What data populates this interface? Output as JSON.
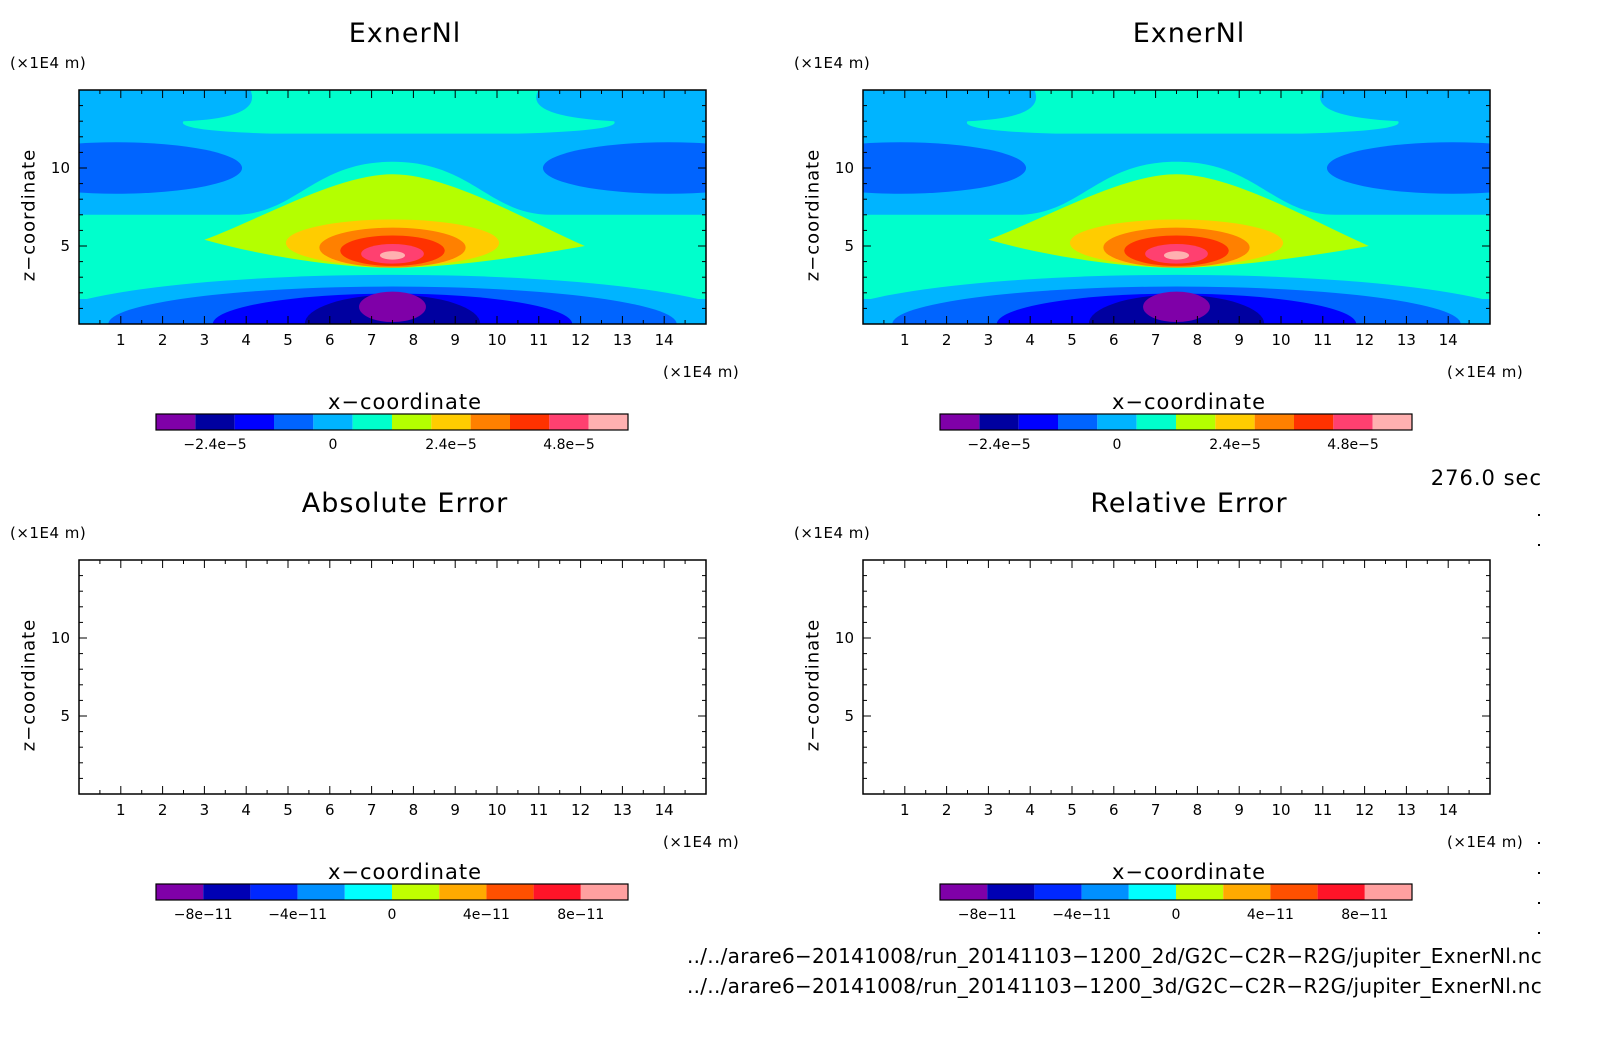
{
  "panels": [
    {
      "title": "ExnerNl",
      "y_unit": "(×1E4 m)",
      "x_unit": "(×1E4 m)",
      "xlabel": "x−coordinate",
      "ylabel": "z−coordinate",
      "colorbar_labels": [
        "−2.4e−5",
        "0",
        "2.4e−5",
        "4.8e−5"
      ]
    },
    {
      "title": "ExnerNl",
      "y_unit": "(×1E4 m)",
      "x_unit": "(×1E4 m)",
      "xlabel": "x−coordinate",
      "ylabel": "z−coordinate",
      "colorbar_labels": [
        "−2.4e−5",
        "0",
        "2.4e−5",
        "4.8e−5"
      ]
    },
    {
      "title": "Absolute Error",
      "y_unit": "(×1E4 m)",
      "x_unit": "(×1E4 m)",
      "xlabel": "x−coordinate",
      "ylabel": "z−coordinate",
      "colorbar_labels": [
        "−8e−11",
        "−4e−11",
        "0",
        "4e−11",
        "8e−11"
      ]
    },
    {
      "title": "Relative Error",
      "y_unit": "(×1E4 m)",
      "x_unit": "(×1E4 m)",
      "xlabel": "x−coordinate",
      "ylabel": "z−coordinate",
      "colorbar_labels": [
        "−8e−11",
        "−4e−11",
        "0",
        "4e−11",
        "8e−11"
      ]
    }
  ],
  "time_label": "276.0 sec",
  "footer_paths": [
    "../../arare6−20141008/run_20141103−1200_2d/G2C−C2R−R2G/jupiter_ExnerNl.nc",
    "../../arare6−20141008/run_20141103−1200_3d/G2C−C2R−R2G/jupiter_ExnerNl.nc"
  ],
  "colors": {
    "exner_colorbar": [
      "#7f00a8",
      "#0000a0",
      "#0000ff",
      "#0064ff",
      "#00b4ff",
      "#00ffcc",
      "#b4ff00",
      "#ffcc00",
      "#ff8000",
      "#ff3200",
      "#ff4070",
      "#ffb0b0"
    ],
    "error_colorbar": [
      "#7f00a8",
      "#0000b4",
      "#0028ff",
      "#0090ff",
      "#00ffff",
      "#c0ff00",
      "#ffaa00",
      "#ff5000",
      "#ff1428",
      "#ffa0a0"
    ]
  },
  "chart_data": [
    {
      "type": "heatmap",
      "title": "ExnerNl",
      "xlabel": "x−coordinate",
      "ylabel": "z−coordinate",
      "xlim": [
        0,
        15
      ],
      "ylim": [
        0,
        15
      ],
      "xticks": [
        1,
        2,
        3,
        4,
        5,
        6,
        7,
        8,
        9,
        10,
        11,
        12,
        13,
        14
      ],
      "yticks": [
        5,
        10
      ],
      "field": "filled contours; maximum about 5.4e−5 near x=7.5, z=4.4; minimum about −3.3e−5 near x=7.5, z=1.2",
      "colorbar": {
        "ticks": [
          -2.4e-05,
          0,
          2.4e-05,
          4.8e-05
        ],
        "n_colors": 12
      }
    },
    {
      "type": "heatmap",
      "title": "ExnerNl",
      "xlabel": "x−coordinate",
      "ylabel": "z−coordinate",
      "xlim": [
        0,
        15
      ],
      "ylim": [
        0,
        15
      ],
      "xticks": [
        1,
        2,
        3,
        4,
        5,
        6,
        7,
        8,
        9,
        10,
        11,
        12,
        13,
        14
      ],
      "yticks": [
        5,
        10
      ],
      "field": "identical to panel 1",
      "colorbar": {
        "ticks": [
          -2.4e-05,
          0,
          2.4e-05,
          4.8e-05
        ],
        "n_colors": 12
      }
    },
    {
      "type": "heatmap",
      "title": "Absolute Error",
      "xlabel": "x−coordinate",
      "ylabel": "z−coordinate",
      "xlim": [
        0,
        15
      ],
      "ylim": [
        0,
        15
      ],
      "xticks": [
        1,
        2,
        3,
        4,
        5,
        6,
        7,
        8,
        9,
        10,
        11,
        12,
        13,
        14
      ],
      "yticks": [
        5,
        10
      ],
      "field": "empty (no contours drawn)",
      "colorbar": {
        "ticks": [
          -8e-11,
          -4e-11,
          0,
          4e-11,
          8e-11
        ],
        "n_colors": 10
      }
    },
    {
      "type": "heatmap",
      "title": "Relative Error",
      "xlabel": "x−coordinate",
      "ylabel": "z−coordinate",
      "xlim": [
        0,
        15
      ],
      "ylim": [
        0,
        15
      ],
      "xticks": [
        1,
        2,
        3,
        4,
        5,
        6,
        7,
        8,
        9,
        10,
        11,
        12,
        13,
        14
      ],
      "yticks": [
        5,
        10
      ],
      "field": "empty (no contours drawn)",
      "colorbar": {
        "ticks": [
          -8e-11,
          -4e-11,
          0,
          4e-11,
          8e-11
        ],
        "n_colors": 10
      }
    }
  ]
}
